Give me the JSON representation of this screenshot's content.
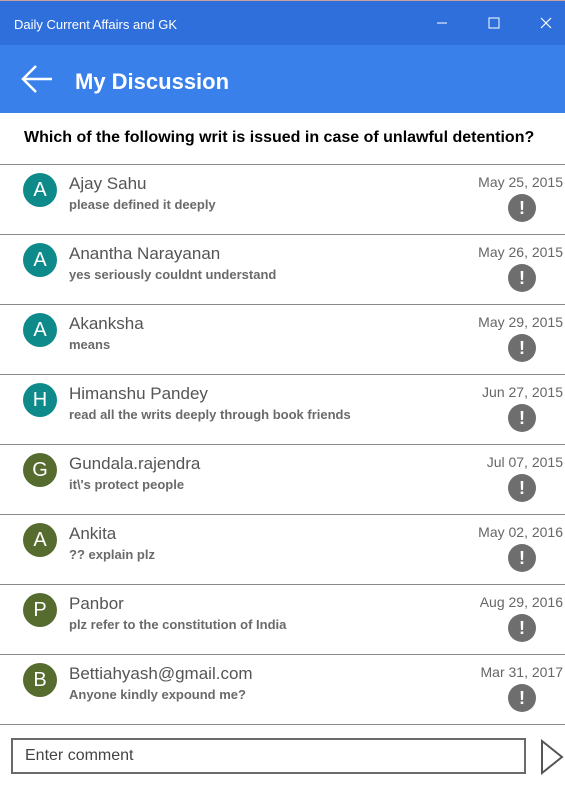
{
  "window": {
    "title": "Daily Current Affairs and GK"
  },
  "header": {
    "title": "My Discussion"
  },
  "question": {
    "text": "Which of the following writ is issued in case of unlawful detention?"
  },
  "colors": {
    "titlebar": "#2f6fdc",
    "header": "#3a80ea",
    "avatar_teal": "#0e8a8a",
    "avatar_olive": "#566b2e"
  },
  "comments": [
    {
      "initial": "A",
      "name": "Ajay Sahu",
      "message": "please defined it deeply",
      "date": "May 25, 2015",
      "avatar_color": "#0e8a8a",
      "report_icon": "!"
    },
    {
      "initial": "A",
      "name": "Anantha Narayanan",
      "message": "yes seriously couldnt understand",
      "date": "May 26, 2015",
      "avatar_color": "#0e8a8a",
      "report_icon": "!"
    },
    {
      "initial": "A",
      "name": "Akanksha",
      "message": "means",
      "date": "May 29, 2015",
      "avatar_color": "#0e8a8a",
      "report_icon": "!"
    },
    {
      "initial": "H",
      "name": "Himanshu Pandey",
      "message": "read all the writs deeply through book friends",
      "date": "Jun 27, 2015",
      "avatar_color": "#0e8a8a",
      "report_icon": "!"
    },
    {
      "initial": "G",
      "name": "Gundala.rajendra",
      "message": "it\\'s protect people",
      "date": "Jul 07, 2015",
      "avatar_color": "#566b2e",
      "report_icon": "!"
    },
    {
      "initial": "A",
      "name": "Ankita",
      "message": "?? explain plz",
      "date": "May 02, 2016",
      "avatar_color": "#566b2e",
      "report_icon": "!"
    },
    {
      "initial": "P",
      "name": "Panbor",
      "message": "plz refer to the constitution of India",
      "date": "Aug 29, 2016",
      "avatar_color": "#566b2e",
      "report_icon": "!"
    },
    {
      "initial": "B",
      "name": "Bettiahyash@gmail.com",
      "message": "Anyone kindly expound me?",
      "date": "Mar 31, 2017",
      "avatar_color": "#566b2e",
      "report_icon": "!"
    }
  ],
  "footer": {
    "comment_placeholder": "Enter comment"
  }
}
